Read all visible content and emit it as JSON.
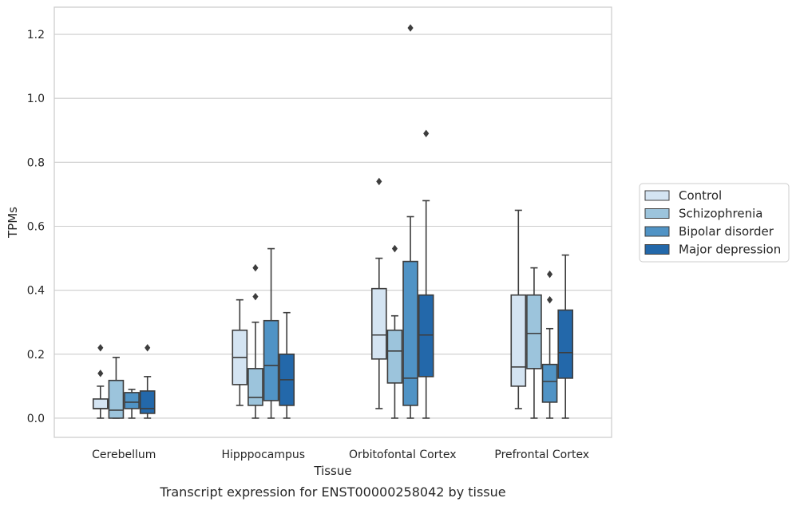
{
  "chart_data": {
    "type": "boxplot",
    "xlabel": "Tissue",
    "ylabel": "TPMs",
    "caption": "Transcript expression for ENST00000258042 by tissue",
    "categories": [
      "Cerebellum",
      "Hipppocampus",
      "Orbitofontal Cortex",
      "Prefrontal Cortex"
    ],
    "ylim": [
      -0.06,
      1.285
    ],
    "yticks": [
      0.0,
      0.2,
      0.4,
      0.6,
      0.8,
      1.0,
      1.2
    ],
    "ytick_labels": [
      "0.0",
      "0.2",
      "0.4",
      "0.6",
      "0.8",
      "1.0",
      "1.2"
    ],
    "grid": "horizontal",
    "legend_position": "right",
    "series": [
      {
        "name": "Control",
        "color": "#d4e4f2",
        "boxes": [
          {
            "whislo": 0.0,
            "q1": 0.03,
            "med": 0.03,
            "q3": 0.06,
            "whishi": 0.1,
            "fliers": [
              0.14,
              0.22
            ]
          },
          {
            "whislo": 0.04,
            "q1": 0.105,
            "med": 0.19,
            "q3": 0.275,
            "whishi": 0.37,
            "fliers": []
          },
          {
            "whislo": 0.03,
            "q1": 0.185,
            "med": 0.26,
            "q3": 0.405,
            "whishi": 0.5,
            "fliers": [
              0.74
            ]
          },
          {
            "whislo": 0.03,
            "q1": 0.1,
            "med": 0.16,
            "q3": 0.385,
            "whishi": 0.65,
            "fliers": []
          }
        ]
      },
      {
        "name": "Schizophrenia",
        "color": "#9cc4dc",
        "boxes": [
          {
            "whislo": 0.0,
            "q1": 0.0,
            "med": 0.025,
            "q3": 0.118,
            "whishi": 0.19,
            "fliers": []
          },
          {
            "whislo": 0.0,
            "q1": 0.04,
            "med": 0.065,
            "q3": 0.155,
            "whishi": 0.3,
            "fliers": [
              0.38,
              0.47
            ]
          },
          {
            "whislo": 0.0,
            "q1": 0.11,
            "med": 0.21,
            "q3": 0.275,
            "whishi": 0.32,
            "fliers": [
              0.53
            ]
          },
          {
            "whislo": 0.0,
            "q1": 0.155,
            "med": 0.265,
            "q3": 0.385,
            "whishi": 0.47,
            "fliers": []
          }
        ]
      },
      {
        "name": "Bipolar disorder",
        "color": "#5093c5",
        "boxes": [
          {
            "whislo": 0.0,
            "q1": 0.03,
            "med": 0.05,
            "q3": 0.08,
            "whishi": 0.09,
            "fliers": []
          },
          {
            "whislo": 0.0,
            "q1": 0.055,
            "med": 0.165,
            "q3": 0.305,
            "whishi": 0.53,
            "fliers": []
          },
          {
            "whislo": 0.0,
            "q1": 0.04,
            "med": 0.125,
            "q3": 0.49,
            "whishi": 0.63,
            "fliers": [
              1.22
            ]
          },
          {
            "whislo": 0.0,
            "q1": 0.05,
            "med": 0.115,
            "q3": 0.168,
            "whishi": 0.28,
            "fliers": [
              0.37,
              0.45
            ]
          }
        ]
      },
      {
        "name": "Major depression",
        "color": "#2368aa",
        "boxes": [
          {
            "whislo": 0.0,
            "q1": 0.015,
            "med": 0.03,
            "q3": 0.085,
            "whishi": 0.13,
            "fliers": [
              0.22
            ]
          },
          {
            "whislo": 0.0,
            "q1": 0.04,
            "med": 0.12,
            "q3": 0.2,
            "whishi": 0.33,
            "fliers": []
          },
          {
            "whislo": 0.0,
            "q1": 0.13,
            "med": 0.26,
            "q3": 0.385,
            "whishi": 0.68,
            "fliers": [
              0.89
            ]
          },
          {
            "whislo": 0.0,
            "q1": 0.125,
            "med": 0.205,
            "q3": 0.338,
            "whishi": 0.51,
            "fliers": []
          }
        ]
      }
    ]
  }
}
